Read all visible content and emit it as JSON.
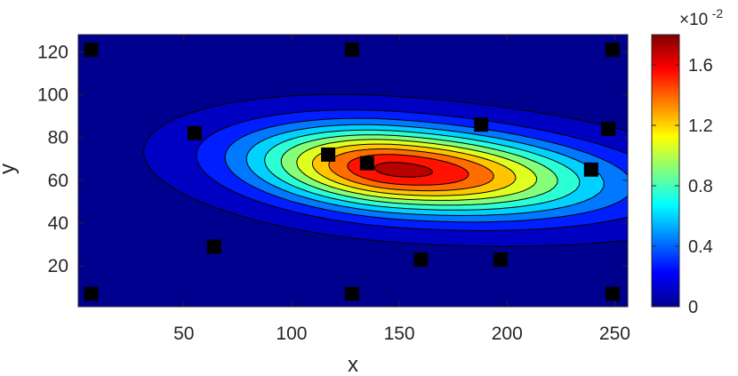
{
  "chart_data": {
    "type": "heatmap",
    "subtype": "filled-contour",
    "title": "",
    "xlabel": "x",
    "ylabel": "y",
    "xlim": [
      1,
      256
    ],
    "ylim": [
      1,
      128
    ],
    "xticks": [
      50,
      100,
      150,
      200,
      250
    ],
    "yticks": [
      20,
      40,
      60,
      80,
      100,
      120
    ],
    "colormap": "jet",
    "contour_levels": 11,
    "contour_line_color": "#000000",
    "grid": false,
    "field": {
      "peak": {
        "x": 150,
        "y": 65,
        "value": 1.75
      },
      "sigma_x_left": 47,
      "sigma_x_right": 63,
      "sigma_y": 13.5,
      "skew_y_per_x": -0.07,
      "background_value": 0.05
    },
    "colorbar": {
      "cmin": 0,
      "cmax": 1.8,
      "ticks": [
        0,
        0.4,
        0.8,
        1.2,
        1.6
      ],
      "tick_labels": [
        "0",
        "0.4",
        "0.8",
        "1.2",
        "1.6"
      ],
      "exponent_base": "×10",
      "exponent": "-2"
    },
    "markers": {
      "shape": "square",
      "color": "#000000",
      "points": [
        {
          "x": 7,
          "y": 121
        },
        {
          "x": 128,
          "y": 121
        },
        {
          "x": 249,
          "y": 121
        },
        {
          "x": 55,
          "y": 82
        },
        {
          "x": 188,
          "y": 86
        },
        {
          "x": 247,
          "y": 84
        },
        {
          "x": 117,
          "y": 72
        },
        {
          "x": 135,
          "y": 68
        },
        {
          "x": 239,
          "y": 65
        },
        {
          "x": 64,
          "y": 29
        },
        {
          "x": 160,
          "y": 23
        },
        {
          "x": 197,
          "y": 23
        },
        {
          "x": 7,
          "y": 7
        },
        {
          "x": 128,
          "y": 7
        },
        {
          "x": 249,
          "y": 7
        }
      ]
    }
  }
}
